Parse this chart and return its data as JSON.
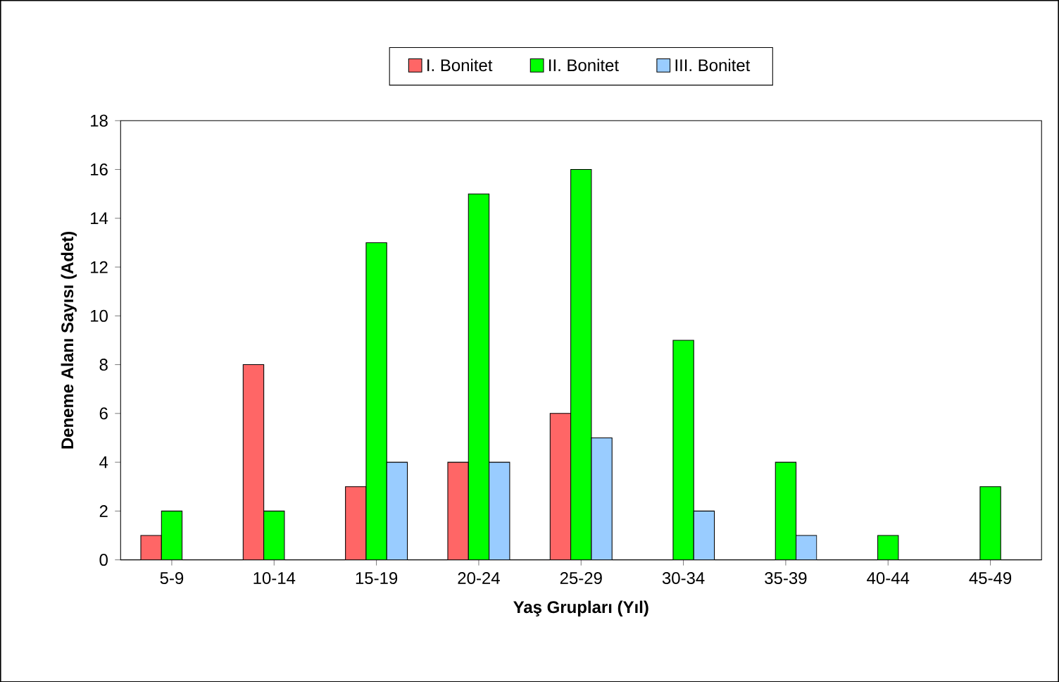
{
  "chart_data": {
    "type": "bar",
    "xlabel": "Yaş Grupları (Yıl)",
    "ylabel": "Deneme Alanı Sayısı (Adet)",
    "categories": [
      "5-9",
      "10-14",
      "15-19",
      "20-24",
      "25-29",
      "30-34",
      "35-39",
      "40-44",
      "45-49"
    ],
    "series": [
      {
        "name": "I. Bonitet",
        "color": "#ff6666",
        "values": [
          1,
          8,
          3,
          4,
          6,
          null,
          null,
          null,
          null
        ]
      },
      {
        "name": "II. Bonitet",
        "color": "#00ff00",
        "values": [
          2,
          2,
          13,
          15,
          16,
          9,
          4,
          1,
          3
        ]
      },
      {
        "name": "III. Bonitet",
        "color": "#99ccff",
        "values": [
          null,
          null,
          4,
          4,
          5,
          2,
          1,
          null,
          null
        ]
      }
    ],
    "ylim": [
      0,
      18
    ],
    "yticks": [
      0,
      2,
      4,
      6,
      8,
      10,
      12,
      14,
      16,
      18
    ],
    "grid": false,
    "legend": "top"
  }
}
